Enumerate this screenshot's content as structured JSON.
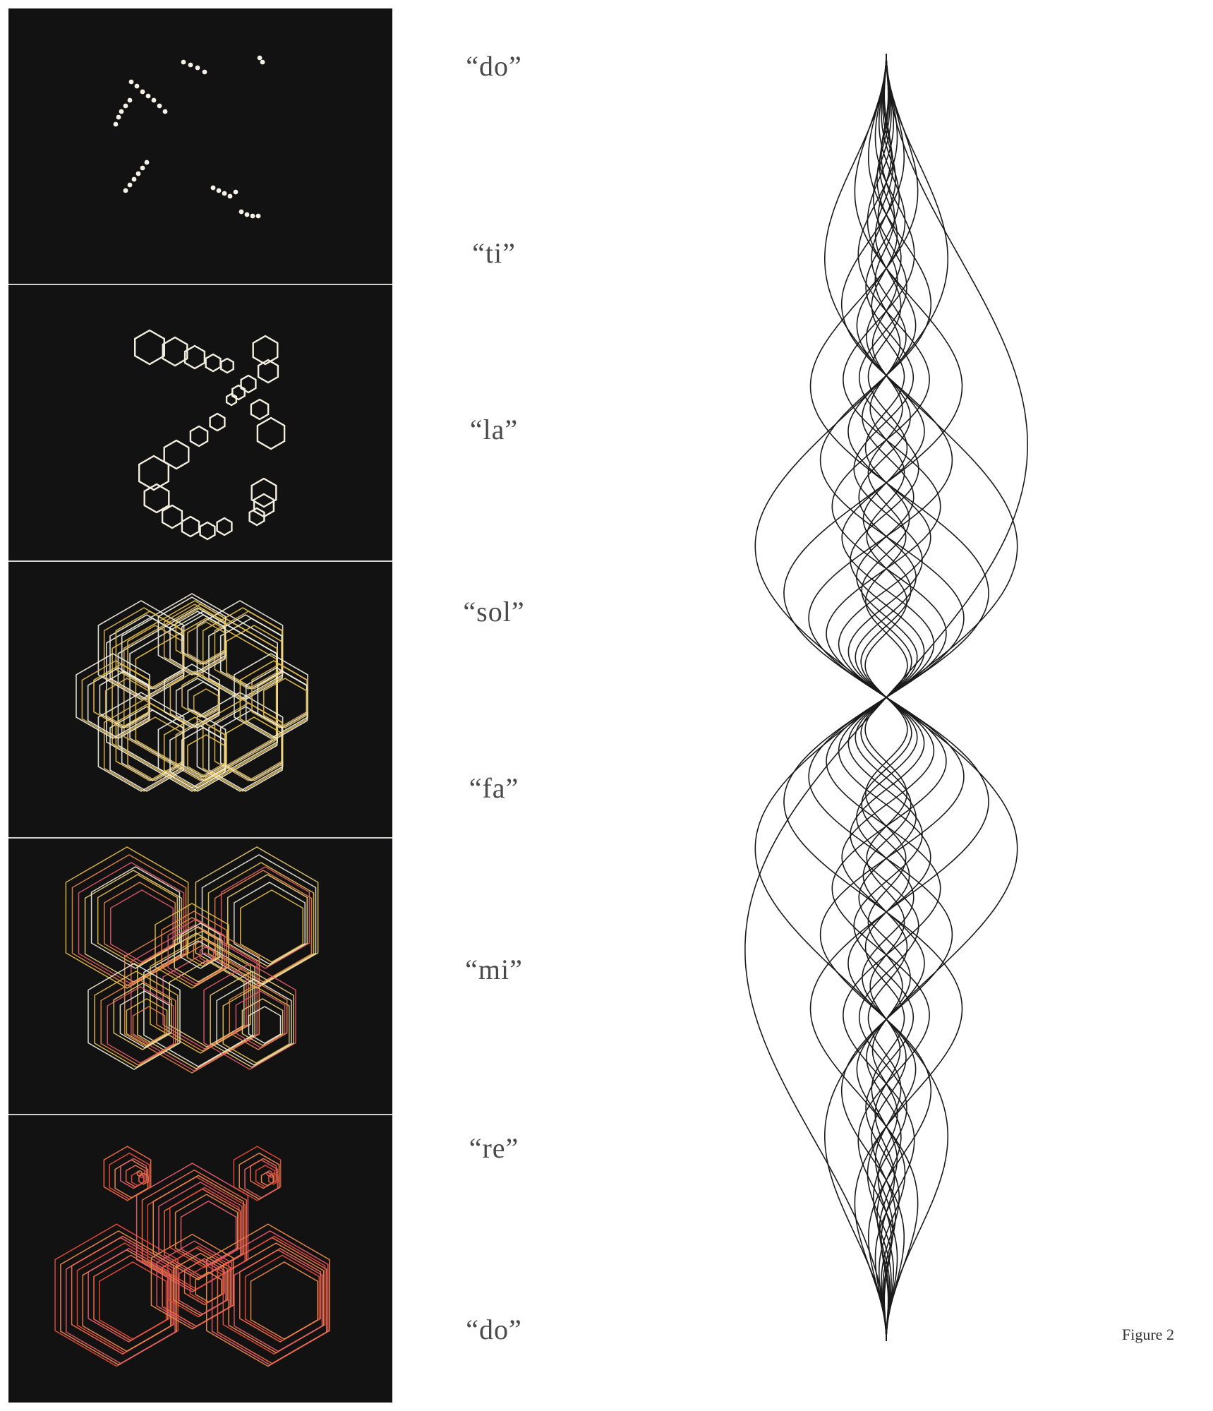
{
  "labels": [
    "“do”",
    "“ti”",
    "“la”",
    "“sol”",
    "“fa”",
    "“mi”",
    "“re”",
    "“do”"
  ],
  "caption": "Figure 2",
  "colors": {
    "frame_bg": "#121212",
    "dots": "#f4f2e6",
    "hex_white": "#f2efe0",
    "hex_yellow": "#e8c24a",
    "hex_orange": "#e8874a",
    "hex_pink": "#e05a6a",
    "hex_red": "#e04a3a",
    "curves": "#1a1a1a"
  },
  "photo_strip": {
    "frames": [
      {
        "name": "frame-dots",
        "content": "dots"
      },
      {
        "name": "frame-hexagon-outlines",
        "content": "hexagons"
      },
      {
        "name": "frame-white-yellow-hexagons",
        "content": "hexagons"
      },
      {
        "name": "frame-yellow-orange-hexagons",
        "content": "hexagons"
      },
      {
        "name": "frame-red-hexagons",
        "content": "hexagons"
      }
    ]
  }
}
